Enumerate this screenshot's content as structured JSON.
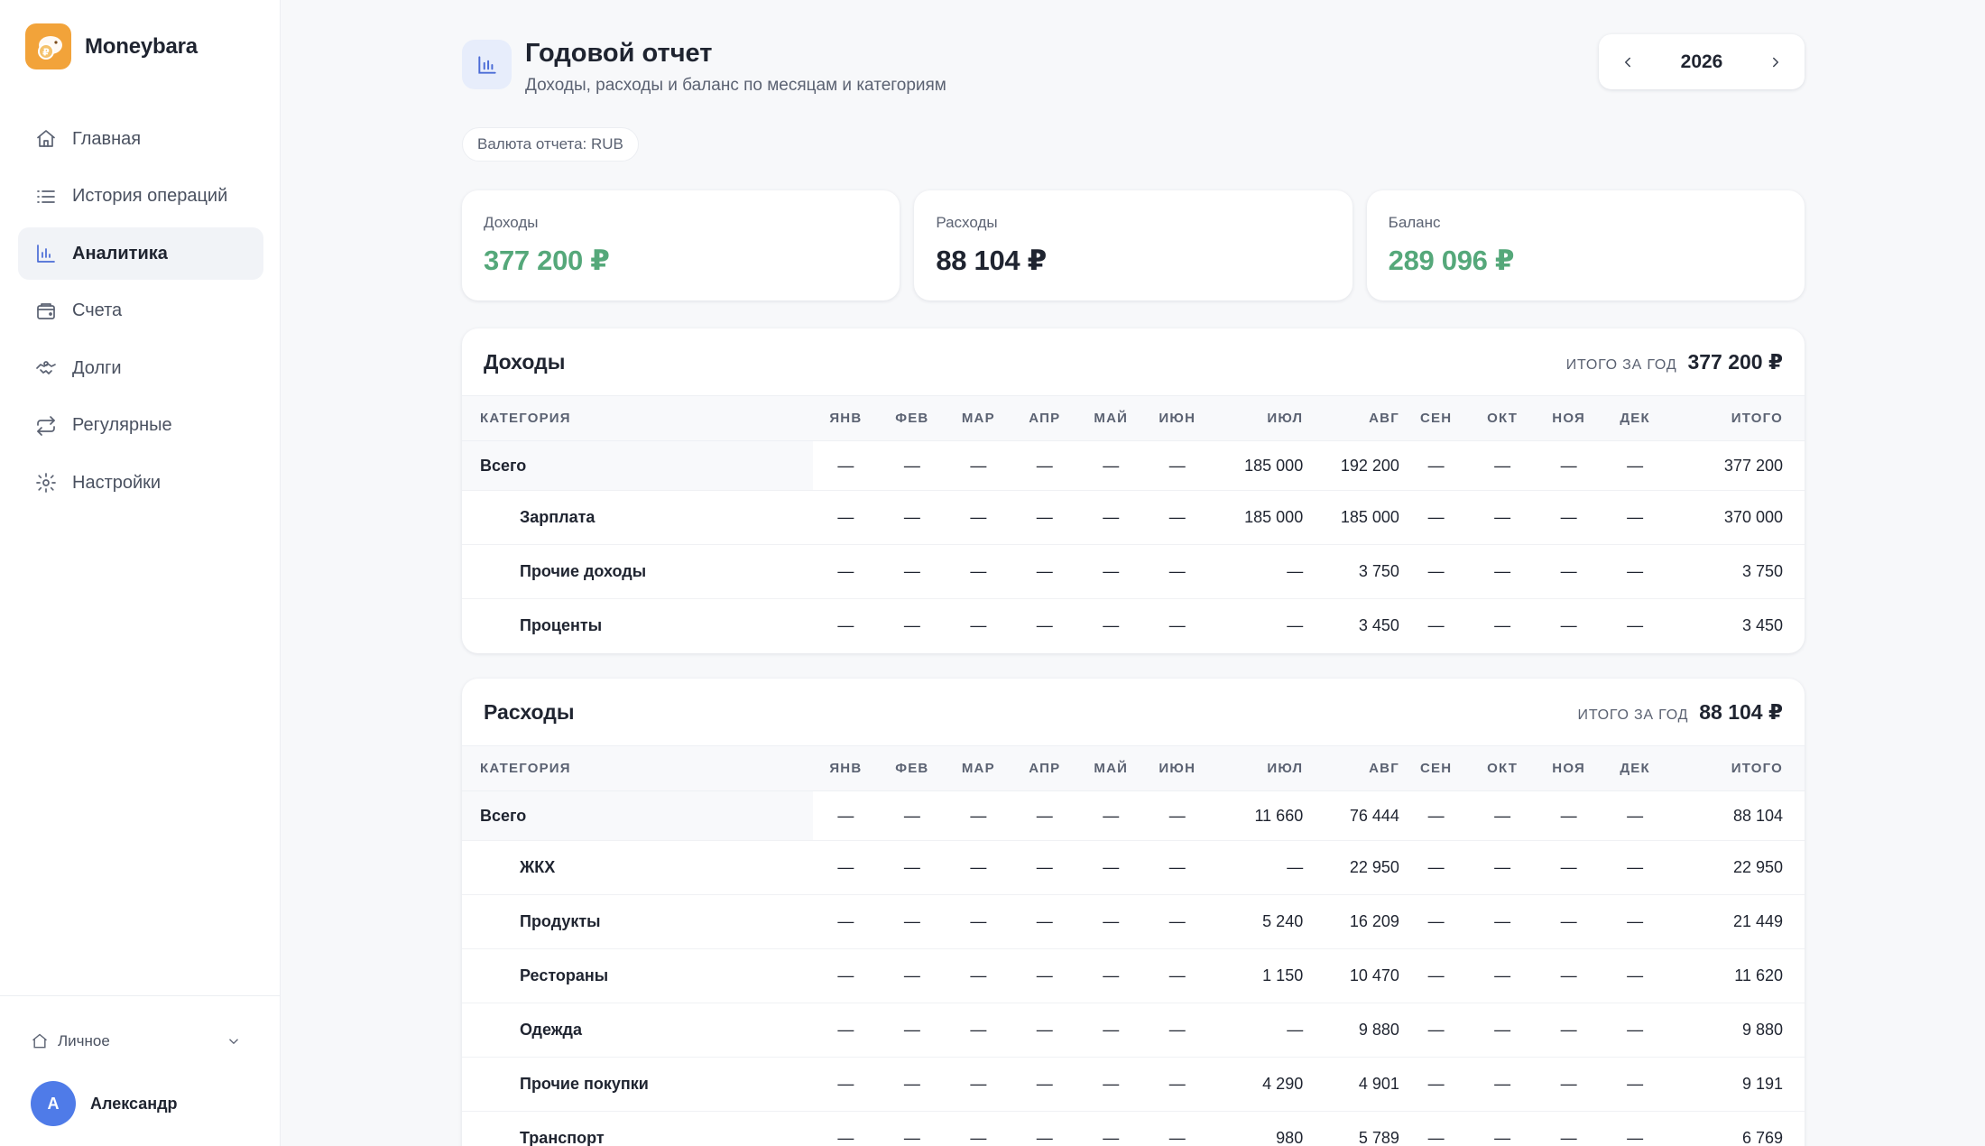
{
  "brand": {
    "name": "Moneybara"
  },
  "nav": {
    "items": [
      {
        "label": "Главная",
        "icon": "home-icon"
      },
      {
        "label": "История операций",
        "icon": "list-icon"
      },
      {
        "label": "Аналитика",
        "icon": "chart-icon",
        "active": true
      },
      {
        "label": "Счета",
        "icon": "wallet-icon"
      },
      {
        "label": "Долги",
        "icon": "handshake-icon"
      },
      {
        "label": "Регулярные",
        "icon": "repeat-icon"
      },
      {
        "label": "Настройки",
        "icon": "gear-icon"
      }
    ]
  },
  "workspace": {
    "label": "Личное"
  },
  "user": {
    "initial": "А",
    "name": "Александр"
  },
  "header": {
    "title": "Годовой отчет",
    "subtitle": "Доходы, расходы и баланс по месяцам и категориям",
    "year": "2026",
    "currency": "Валюта отчета: RUB"
  },
  "summary": {
    "income": {
      "label": "Доходы",
      "value": "377 200 ₽"
    },
    "expense": {
      "label": "Расходы",
      "value": "88 104 ₽"
    },
    "balance": {
      "label": "Баланс",
      "value": "289 096 ₽"
    }
  },
  "columns": [
    "КАТЕГОРИЯ",
    "ЯНВ",
    "ФЕВ",
    "МАР",
    "АПР",
    "МАЙ",
    "ИЮН",
    "ИЮЛ",
    "АВГ",
    "СЕН",
    "ОКТ",
    "НОЯ",
    "ДЕК",
    "ИТОГО"
  ],
  "income_table": {
    "title": "Доходы",
    "total_label": "итого за год",
    "total_value": "377 200 ₽",
    "rows": [
      {
        "name": "Всего",
        "total": true,
        "cells": [
          "—",
          "—",
          "—",
          "—",
          "—",
          "—",
          "185 000",
          "192 200",
          "—",
          "—",
          "—",
          "—",
          "377 200"
        ]
      },
      {
        "name": "Зарплата",
        "cells": [
          "—",
          "—",
          "—",
          "—",
          "—",
          "—",
          "185 000",
          "185 000",
          "—",
          "—",
          "—",
          "—",
          "370 000"
        ]
      },
      {
        "name": "Прочие доходы",
        "cells": [
          "—",
          "—",
          "—",
          "—",
          "—",
          "—",
          "—",
          "3 750",
          "—",
          "—",
          "—",
          "—",
          "3 750"
        ]
      },
      {
        "name": "Проценты",
        "cells": [
          "—",
          "—",
          "—",
          "—",
          "—",
          "—",
          "—",
          "3 450",
          "—",
          "—",
          "—",
          "—",
          "3 450"
        ]
      }
    ]
  },
  "expense_table": {
    "title": "Расходы",
    "total_label": "итого за год",
    "total_value": "88 104 ₽",
    "rows": [
      {
        "name": "Всего",
        "total": true,
        "cells": [
          "—",
          "—",
          "—",
          "—",
          "—",
          "—",
          "11 660",
          "76 444",
          "—",
          "—",
          "—",
          "—",
          "88 104"
        ]
      },
      {
        "name": "ЖКХ",
        "cells": [
          "—",
          "—",
          "—",
          "—",
          "—",
          "—",
          "—",
          "22 950",
          "—",
          "—",
          "—",
          "—",
          "22 950"
        ]
      },
      {
        "name": "Продукты",
        "cells": [
          "—",
          "—",
          "—",
          "—",
          "—",
          "—",
          "5 240",
          "16 209",
          "—",
          "—",
          "—",
          "—",
          "21 449"
        ]
      },
      {
        "name": "Рестораны",
        "cells": [
          "—",
          "—",
          "—",
          "—",
          "—",
          "—",
          "1 150",
          "10 470",
          "—",
          "—",
          "—",
          "—",
          "11 620"
        ]
      },
      {
        "name": "Одежда",
        "cells": [
          "—",
          "—",
          "—",
          "—",
          "—",
          "—",
          "—",
          "9 880",
          "—",
          "—",
          "—",
          "—",
          "9 880"
        ]
      },
      {
        "name": "Прочие покупки",
        "cells": [
          "—",
          "—",
          "—",
          "—",
          "—",
          "—",
          "4 290",
          "4 901",
          "—",
          "—",
          "—",
          "—",
          "9 191"
        ]
      },
      {
        "name": "Транспорт",
        "cells": [
          "—",
          "—",
          "—",
          "—",
          "—",
          "—",
          "980",
          "5 789",
          "—",
          "—",
          "—",
          "—",
          "6 769"
        ]
      }
    ]
  }
}
